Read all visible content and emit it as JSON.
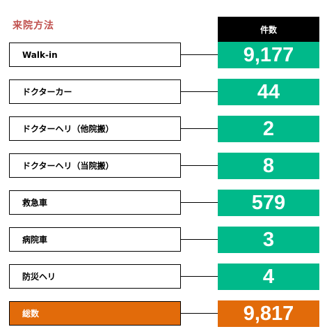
{
  "title": "来院方法",
  "header": "件数",
  "rows": [
    {
      "label": "Walk-in",
      "value": "9,177"
    },
    {
      "label": "ドクターカー",
      "value": "44"
    },
    {
      "label": "ドクターヘリ（他院搬）",
      "value": "2"
    },
    {
      "label": "ドクターヘリ（当院搬）",
      "value": "8"
    },
    {
      "label": "救急車",
      "value": "579"
    },
    {
      "label": "病院車",
      "value": "3"
    },
    {
      "label": "防災ヘリ",
      "value": "4"
    }
  ],
  "total": {
    "label": "総数",
    "value": "9,817"
  },
  "colors": {
    "title": "#c0504d",
    "value_fill": "#00b98a",
    "total_fill": "#e26b0a",
    "header_fill": "#000000"
  }
}
